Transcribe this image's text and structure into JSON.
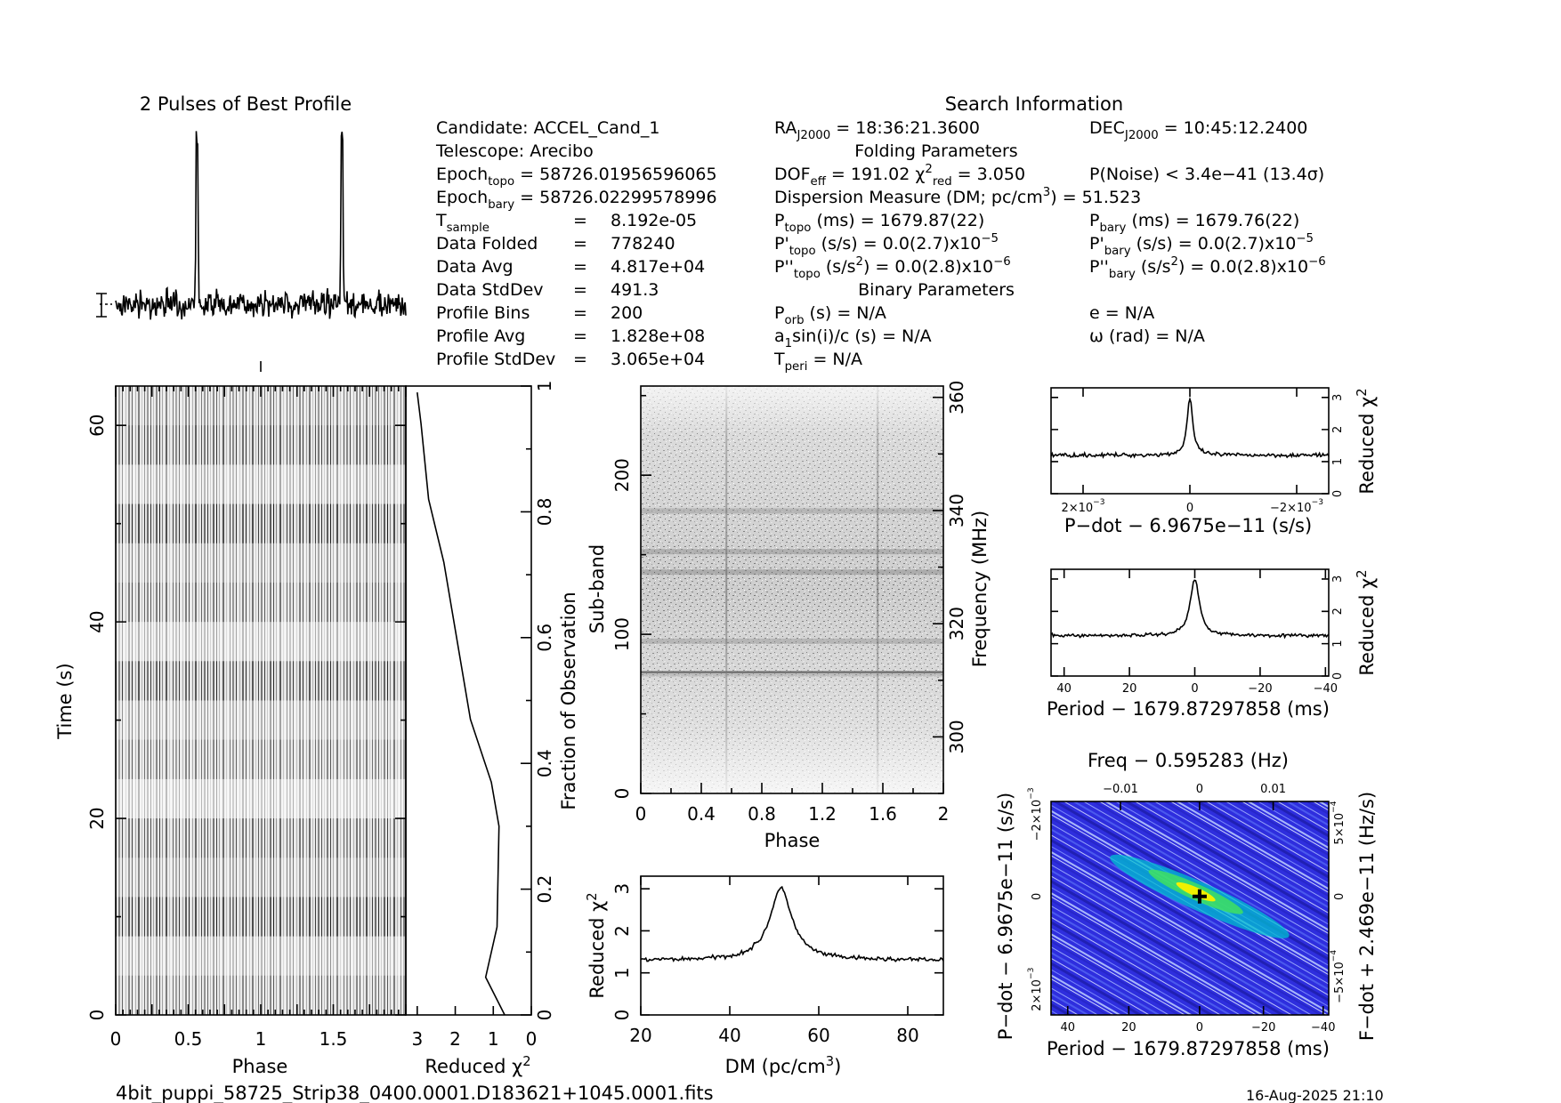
{
  "page": {
    "filename": "4bit_puppi_58725_Strip38_0400.0001.D183621+1045.0001.fits",
    "date": "16-Aug-2025 21:10"
  },
  "info": {
    "search_title": "Search Information",
    "col1": [
      {
        "label": "Candidate:",
        "value": "ACCEL_Cand_1"
      },
      {
        "label": "Telescope:",
        "value": "Arecibo"
      },
      {
        "label": "Epoch",
        "sub": "topo",
        "value": "= 58726.01956596065"
      },
      {
        "label": "Epoch",
        "sub": "bary",
        "value": "= 58726.02299578996"
      },
      {
        "label": "T",
        "sub": "sample",
        "value": "8.192e-05"
      },
      {
        "label": "Data Folded",
        "value": "778240"
      },
      {
        "label": "Data Avg",
        "value": "4.817e+04"
      },
      {
        "label": "Data StdDev",
        "value": "491.3"
      },
      {
        "label": "Profile Bins",
        "value": "200"
      },
      {
        "label": "Profile Avg",
        "value": "1.828e+08"
      },
      {
        "label": "Profile StdDev",
        "value": "3.065e+04"
      }
    ],
    "eq": "=",
    "ra": {
      "label": "RA",
      "sub": "J2000",
      "value": "= 18:36:21.3600"
    },
    "dec": {
      "label": "DEC",
      "sub": "J2000",
      "value": "= 10:45:12.2400"
    },
    "folding_title": "Folding Parameters",
    "dof": {
      "label": "DOF",
      "sub": "eff",
      "value": "= 191.02"
    },
    "chi": {
      "label": "χ",
      "sup": "2",
      "sub": "red",
      "value": "= 3.050"
    },
    "pnoise": "P(Noise) < 3.4e−41   (13.4σ)",
    "dm_line": {
      "text": "Dispersion Measure (DM; pc/cm",
      "sup": "3",
      "tail": ") = 51.523"
    },
    "ptopo": {
      "label": "P",
      "sub": "topo",
      "value": "(ms) =  1679.87(22)"
    },
    "pbary": {
      "label": "P",
      "sub": "bary",
      "value": "(ms) =  1679.76(22)"
    },
    "pdtopo": {
      "label": "P'",
      "sub": "topo",
      "value": "(s/s) = 0.0(2.7)x10",
      "sup": "−5"
    },
    "pdbary": {
      "label": "P'",
      "sub": "bary",
      "value": "(s/s) = 0.0(2.7)x10",
      "sup": "−5"
    },
    "pddtopo": {
      "label": "P''",
      "sub": "topo",
      "value": "(s/s",
      "sup1": "2",
      "value2": ") = 0.0(2.8)x10",
      "sup": "−6"
    },
    "pddbary": {
      "label": "P''",
      "sub": "bary",
      "value": "(s/s",
      "sup1": "2",
      "value2": ") = 0.0(2.8)x10",
      "sup": "−6"
    },
    "binary_title": "Binary Parameters",
    "porb": {
      "label": "P",
      "sub": "orb",
      "value": "(s) = N/A"
    },
    "e": "e = N/A",
    "asini": {
      "label": "a",
      "sub": "1",
      "value": "sin(i)/c (s) = N/A"
    },
    "omega": "ω (rad) = N/A",
    "tperi": {
      "label": "T",
      "sub": "peri",
      "value": "= N/A"
    }
  },
  "chart_data": [
    {
      "id": "profile",
      "type": "line",
      "title": "2 Pulses of Best Profile",
      "x": [
        0,
        2
      ],
      "pulse_phases": [
        0.56,
        1.56
      ],
      "note": "profile curve: noise baseline with two narrow pulses"
    },
    {
      "id": "time_phase",
      "type": "heatmap",
      "xlabel": "Phase",
      "ylabel": "Time (s)",
      "xlim": [
        0,
        2
      ],
      "ylim": [
        0,
        64
      ],
      "xticks": [
        "0",
        "0.5",
        "1",
        "1.5"
      ],
      "yticks": [
        "0",
        "20",
        "40",
        "60"
      ]
    },
    {
      "id": "time_chi",
      "type": "line",
      "xlabel": "Reduced χ",
      "xlabel_sup": "2",
      "ylabel": "Fraction of Observation",
      "xlim": [
        3.3,
        0
      ],
      "ylim": [
        0,
        1
      ],
      "xticks": [
        "3",
        "2",
        "1",
        "0"
      ],
      "yticks": [
        "0",
        "0.2",
        "0.4",
        "0.6",
        "0.8",
        "1"
      ],
      "points": [
        [
          0.7,
          0
        ],
        [
          1.2,
          0.06
        ],
        [
          0.9,
          0.14
        ],
        [
          0.85,
          0.3
        ],
        [
          1.05,
          0.37
        ],
        [
          1.6,
          0.47
        ],
        [
          2.3,
          0.72
        ],
        [
          2.7,
          0.82
        ],
        [
          2.9,
          0.94
        ],
        [
          3.0,
          0.99
        ]
      ]
    },
    {
      "id": "subband_phase",
      "type": "heatmap",
      "xlabel": "Phase",
      "ylabel": "Sub-band",
      "ylabel2": "Frequency (MHz)",
      "xlim": [
        0,
        2
      ],
      "ylim": [
        0,
        256
      ],
      "ylim2": [
        290,
        362
      ],
      "xticks": [
        "0",
        "0.4",
        "0.8",
        "1.2",
        "1.6",
        "2"
      ],
      "yticks": [
        "0",
        "100",
        "200"
      ],
      "yticks2": [
        "300",
        "320",
        "340",
        "360"
      ]
    },
    {
      "id": "dm_chi",
      "type": "line",
      "xlabel": "DM (pc/cm",
      "xlabel_sup": "3",
      "xlabel_tail": ")",
      "ylabel": "Reduced χ",
      "ylabel_sup": "2",
      "xlim": [
        20,
        88
      ],
      "ylim": [
        0,
        3.3
      ],
      "xticks": [
        "20",
        "40",
        "60",
        "80"
      ],
      "yticks": [
        "0",
        "1",
        "2",
        "3"
      ],
      "baseline": 1.3,
      "peak_x": 51.5,
      "peak_y": 3.0
    },
    {
      "id": "pdot_chi",
      "type": "line",
      "xlabel": "P−dot − 6.9675e−11 (s/s)",
      "ylabel": "Reduced χ",
      "ylabel_sup": "2",
      "xlim": [
        0.0026,
        -0.0026
      ],
      "ylim": [
        0,
        3.3
      ],
      "xticks": [
        "2×10",
        "0",
        "−2×10"
      ],
      "xtick_sup": "−3",
      "yticks": [
        "0",
        "1",
        "2",
        "3"
      ],
      "baseline": 1.2,
      "peak_x": 0,
      "peak_y": 3.0
    },
    {
      "id": "period_chi",
      "type": "line",
      "xlabel": "Period − 1679.87297858 (ms)",
      "ylabel": "Reduced χ",
      "ylabel_sup": "2",
      "xlim": [
        44,
        -41
      ],
      "ylim": [
        0,
        3.3
      ],
      "xticks": [
        "40",
        "20",
        "0",
        "−20",
        "−40"
      ],
      "yticks": [
        "0",
        "1",
        "2",
        "3"
      ],
      "baseline": 1.25,
      "peak_x": 0,
      "peak_y": 3.0
    },
    {
      "id": "period_pdot",
      "type": "heatmap",
      "title": "Freq − 0.595283 (Hz)",
      "xlabel": "Period − 1679.87297858 (ms)",
      "ylabel": "P−dot − 6.9675e−11 (s/s)",
      "ylabel2": "F−dot + 2.469e−11 (Hz/s)",
      "xticks": [
        "40",
        "20",
        "0",
        "−20",
        "−40"
      ],
      "xticks_top": [
        "−0.01",
        "0",
        "0.01"
      ],
      "yticks": [
        "2×10",
        "0",
        "−2×10"
      ],
      "ytick_sup": "−3",
      "yticks2": [
        "−5×10",
        "0",
        "5×10"
      ],
      "ytick2_sup": "−4",
      "best": [
        0,
        0
      ],
      "colors": [
        "#2020d0",
        "#3a60f0",
        "#00c0d0",
        "#40e060",
        "#f0f000"
      ]
    }
  ]
}
